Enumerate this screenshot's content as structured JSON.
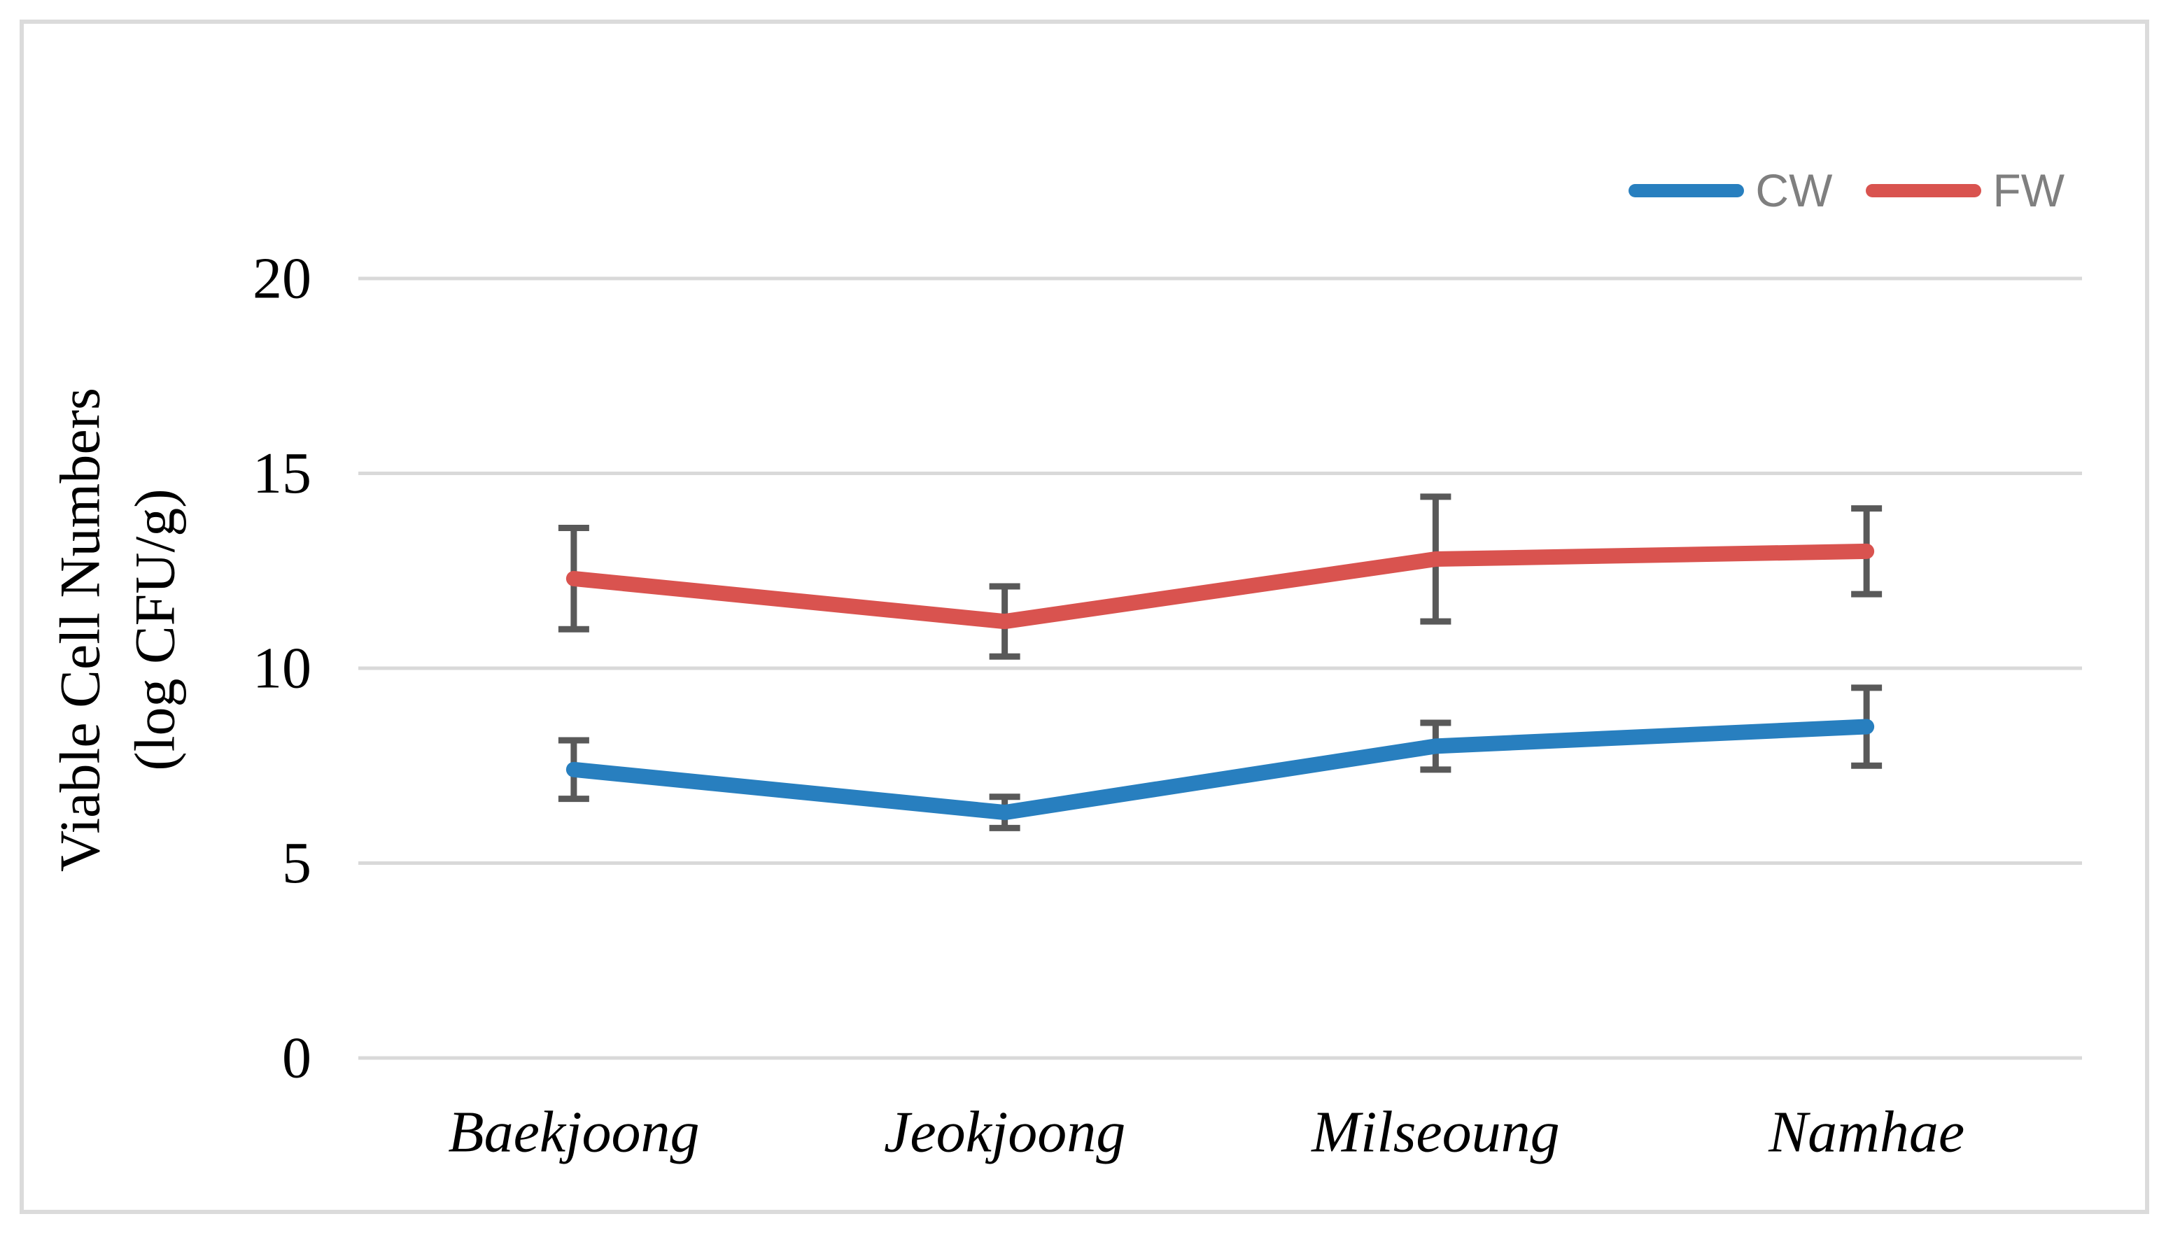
{
  "figure": {
    "background": "#ffffff",
    "border_color": "#dbdbdb"
  },
  "y_axis": {
    "title_line1": "Viable Cell Numbers",
    "title_line2": "(log CFU/g)",
    "ticks": [
      0,
      5,
      10,
      15,
      20
    ],
    "min": 0,
    "max": 20
  },
  "x_axis": {
    "categories": [
      "Baekjoong",
      "Jeokjoong",
      "Milseoung",
      "Namhae"
    ]
  },
  "legend": {
    "items": [
      {
        "label": "CW",
        "color": "#287fbf"
      },
      {
        "label": "FW",
        "color": "#d9534f"
      }
    ],
    "text_color": "#7f7f7f",
    "position": "top-right"
  },
  "chart_data": {
    "type": "line",
    "title": "",
    "xlabel": "",
    "ylabel": "Viable Cell Numbers (log CFU/g)",
    "categories": [
      "Baekjoong",
      "Jeokjoong",
      "Milseoung",
      "Namhae"
    ],
    "series": [
      {
        "name": "CW",
        "color": "#287fbf",
        "values": [
          7.4,
          6.3,
          8.0,
          8.5
        ],
        "error_bars": [
          0.75,
          0.4,
          0.6,
          1.0
        ]
      },
      {
        "name": "FW",
        "color": "#d9534f",
        "values": [
          12.3,
          11.2,
          12.8,
          13.0
        ],
        "error_bars": [
          1.3,
          0.9,
          1.6,
          1.1
        ]
      }
    ],
    "ylim": [
      0,
      20
    ],
    "y_tick_step": 5,
    "grid": "horizontal",
    "gridline_color": "#d9d9d9",
    "error_bar_color": "#595959",
    "legend_position": "top-right"
  }
}
